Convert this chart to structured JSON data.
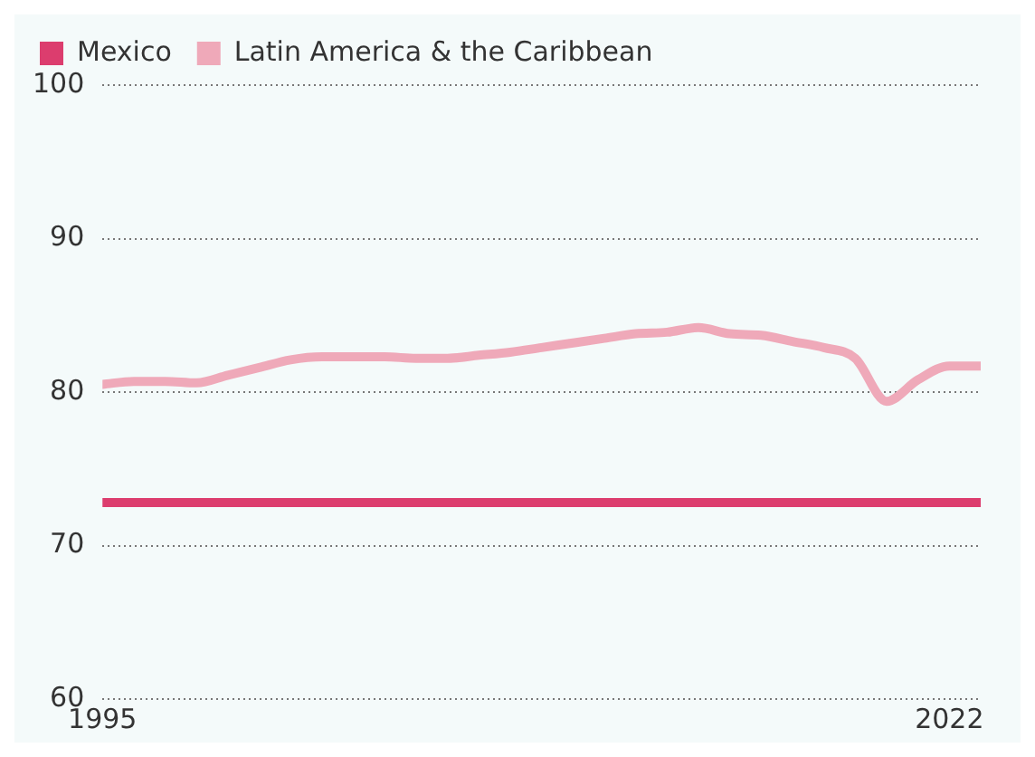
{
  "chart_data": {
    "type": "line",
    "x": [
      1995,
      1996,
      1997,
      1998,
      1999,
      2000,
      2001,
      2002,
      2003,
      2004,
      2005,
      2006,
      2007,
      2008,
      2009,
      2010,
      2011,
      2012,
      2013,
      2014,
      2015,
      2016,
      2017,
      2018,
      2019,
      2020,
      2021,
      2022,
      2023
    ],
    "series": [
      {
        "name": "Mexico",
        "color": "#dc3d6e",
        "values": [
          72.8,
          72.8,
          72.8,
          72.8,
          72.8,
          72.8,
          72.8,
          72.8,
          72.8,
          72.8,
          72.8,
          72.8,
          72.8,
          72.8,
          72.8,
          72.8,
          72.8,
          72.8,
          72.8,
          72.8,
          72.8,
          72.8,
          72.8,
          72.8,
          72.8,
          72.8,
          72.8,
          72.8,
          72.8
        ]
      },
      {
        "name": "Latin America & the Caribbean",
        "color": "#efa9b9",
        "values": [
          80.5,
          80.7,
          80.7,
          80.6,
          81.1,
          81.6,
          82.1,
          82.3,
          82.3,
          82.3,
          82.2,
          82.2,
          82.4,
          82.6,
          82.9,
          83.2,
          83.5,
          83.8,
          83.9,
          84.2,
          83.8,
          83.7,
          83.3,
          82.9,
          82.2,
          79.4,
          80.8,
          81.7,
          81.7
        ]
      }
    ],
    "xlim": [
      1995,
      2023
    ],
    "xticks": [
      1995,
      2022
    ],
    "ylim": [
      60,
      100
    ],
    "yticks": [
      60,
      70,
      80,
      90,
      100
    ],
    "grid": "y",
    "legend": "top left",
    "marker": "none",
    "line_style": "solid"
  }
}
